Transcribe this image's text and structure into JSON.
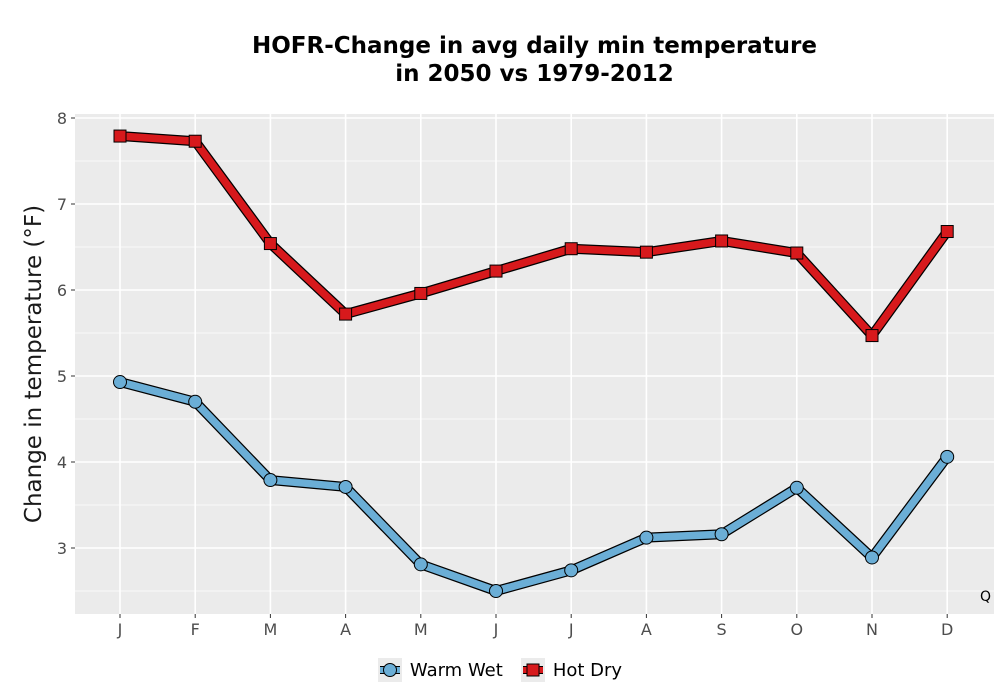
{
  "chart_data": {
    "type": "line",
    "title_line1": "HOFR-Change in avg daily min temperature",
    "title_line2": "in 2050 vs 1979-2012",
    "xlabel": "",
    "ylabel": "Change in temperature (°F)",
    "categories": [
      "J",
      "F",
      "M",
      "A",
      "M",
      "J",
      "J",
      "A",
      "S",
      "O",
      "N",
      "D"
    ],
    "ylim": [
      2.25,
      8.1
    ],
    "yticks": [
      3,
      4,
      5,
      6,
      7,
      8
    ],
    "grid": true,
    "legend_position": "bottom",
    "series": [
      {
        "name": "Warm Wet",
        "color": "#6baed6",
        "marker": "circle",
        "values": [
          4.93,
          4.7,
          3.79,
          3.71,
          2.81,
          2.5,
          2.74,
          3.12,
          3.16,
          3.7,
          2.89,
          4.06
        ]
      },
      {
        "name": "Hot Dry",
        "color": "#d7191c",
        "marker": "square",
        "values": [
          7.79,
          7.73,
          6.54,
          5.72,
          5.96,
          6.22,
          6.48,
          6.44,
          6.57,
          6.43,
          5.47,
          6.68
        ]
      }
    ],
    "caption": "Q"
  }
}
